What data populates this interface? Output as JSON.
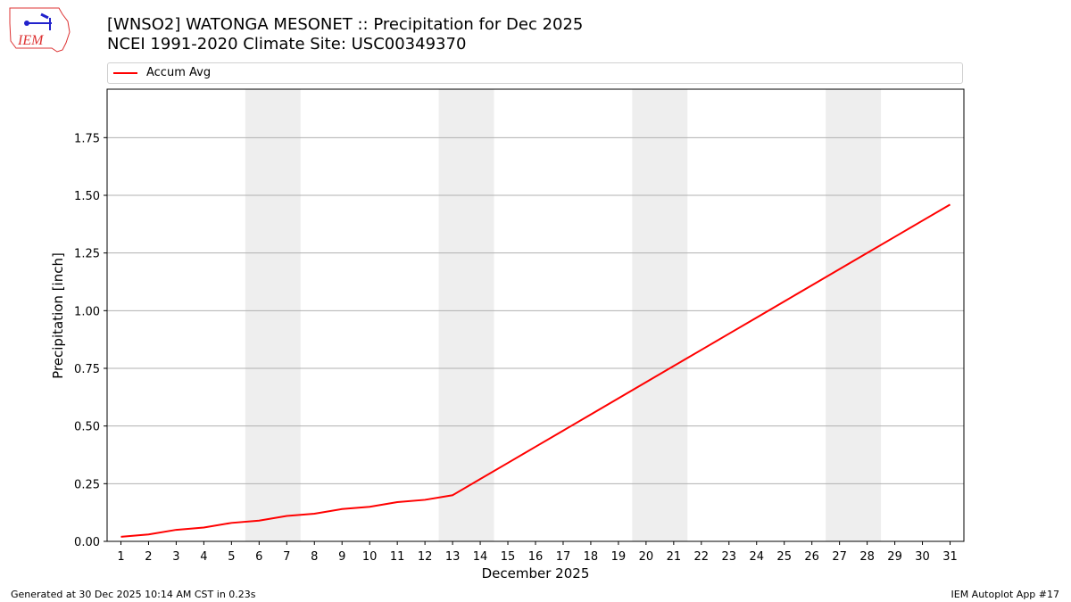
{
  "header": {
    "title_line1": "[WNSO2] WATONGA MESONET :: Precipitation for Dec 2025",
    "title_line2": "NCEI 1991-2020 Climate Site: USC00349370",
    "logo_text": "IEM"
  },
  "legend": {
    "label": "Accum Avg",
    "color": "#ff0000"
  },
  "footer": {
    "left": "Generated at 30 Dec 2025 10:14 AM CST in 0.23s",
    "right": "IEM Autoplot App #17"
  },
  "chart_data": {
    "type": "line",
    "title": "[WNSO2] WATONGA MESONET :: Precipitation for Dec 2025 / NCEI 1991-2020 Climate Site: USC00349370",
    "xlabel": "December 2025",
    "ylabel": "Precipitation [inch]",
    "x": [
      1,
      2,
      3,
      4,
      5,
      6,
      7,
      8,
      9,
      10,
      11,
      12,
      13,
      14,
      15,
      16,
      17,
      18,
      19,
      20,
      21,
      22,
      23,
      24,
      25,
      26,
      27,
      28,
      29,
      30,
      31
    ],
    "series": [
      {
        "name": "Accum Avg",
        "color": "#ff0000",
        "values": [
          0.02,
          0.03,
          0.05,
          0.06,
          0.08,
          0.09,
          0.11,
          0.12,
          0.14,
          0.15,
          0.17,
          0.18,
          0.2,
          0.27,
          0.34,
          0.41,
          0.48,
          0.55,
          0.62,
          0.69,
          0.76,
          0.83,
          0.9,
          0.97,
          1.04,
          1.11,
          1.18,
          1.25,
          1.32,
          1.39,
          1.46
        ]
      }
    ],
    "yticks": [
      "0.00",
      "0.25",
      "0.50",
      "0.75",
      "1.00",
      "1.25",
      "1.50",
      "1.75"
    ],
    "ylim": [
      0,
      1.96
    ],
    "xlim": [
      0.5,
      31.5
    ],
    "grid": "y",
    "legend_position": "top",
    "shaded_weekends": [
      [
        6,
        7
      ],
      [
        13,
        14
      ],
      [
        20,
        21
      ],
      [
        27,
        28
      ]
    ]
  }
}
